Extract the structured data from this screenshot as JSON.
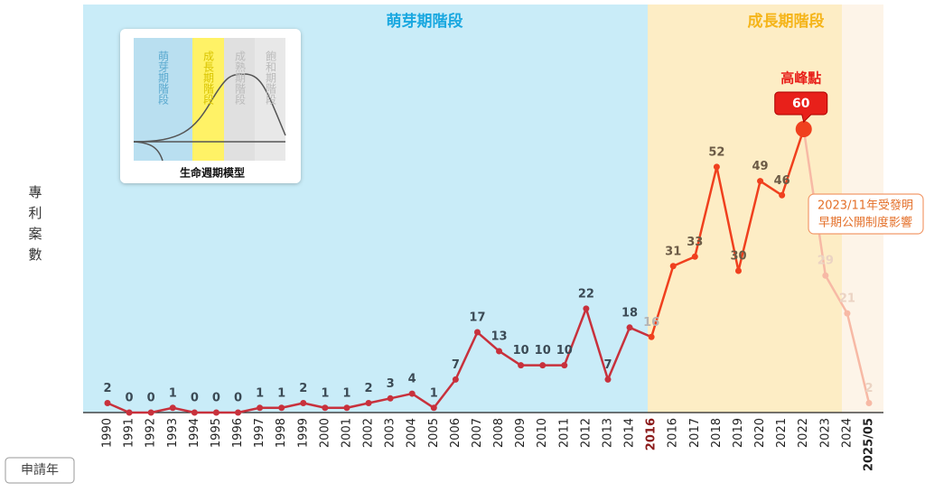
{
  "chart_data": {
    "type": "line",
    "y_axis_label": "專利案數",
    "x_axis_label": "申請年",
    "categories": [
      "1990",
      "1991",
      "1992",
      "1993",
      "1994",
      "1995",
      "1996",
      "1997",
      "1998",
      "1999",
      "2000",
      "2001",
      "2002",
      "2003",
      "2004",
      "2005",
      "2006",
      "2007",
      "2008",
      "2009",
      "2010",
      "2011",
      "2012",
      "2013",
      "2014",
      "2016",
      "2016",
      "2017",
      "2018",
      "2019",
      "2020",
      "2021",
      "2022",
      "2023",
      "2024",
      "2025/05"
    ],
    "series": [
      {
        "name": "專利案數",
        "color": "#c8313c",
        "values": [
          2,
          0,
          0,
          1,
          0,
          0,
          0,
          1,
          1,
          2,
          1,
          1,
          2,
          3,
          4,
          1,
          7,
          17,
          13,
          10,
          10,
          10,
          22,
          7,
          18,
          16,
          31,
          33,
          52,
          30,
          49,
          46,
          60,
          29,
          21,
          2
        ]
      }
    ],
    "ylim": [
      0,
      60
    ],
    "phases": [
      "萌芽期階段",
      "成長期階段"
    ],
    "peak_label": "高峰點",
    "note": [
      "2023/11年受發明",
      "早期公開制度影響"
    ],
    "inset": {
      "title": "生命週期模型",
      "phases": [
        "萌芽期階段",
        "成長期階段",
        "成熟期階段",
        "飽和期階段"
      ]
    }
  }
}
